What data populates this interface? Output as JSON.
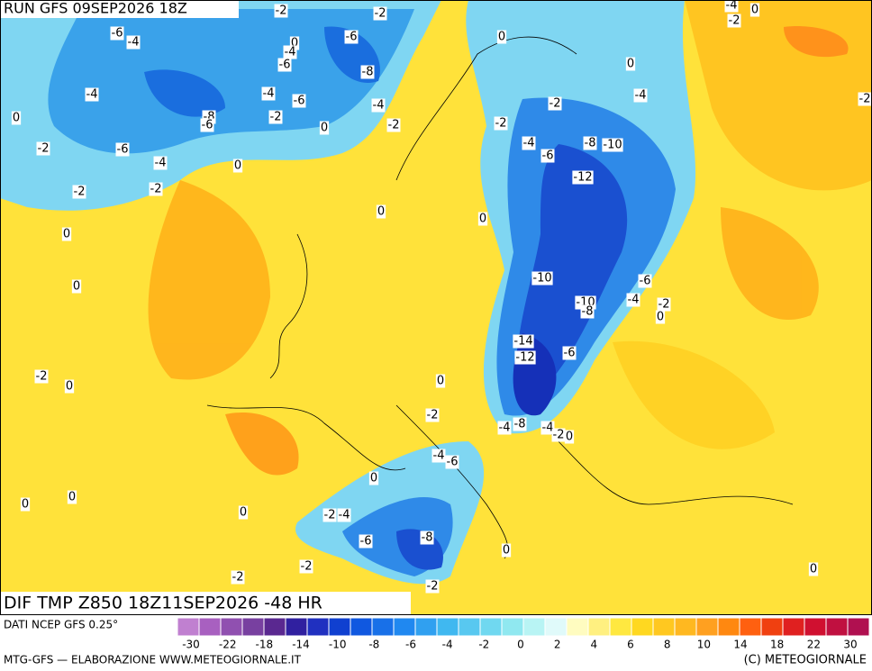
{
  "header": {
    "run": "RUN GFS 09SEP2026 18Z",
    "field": "DIF TMP Z850 18Z11SEP2026 -48 HR",
    "source": "DATI NCEP GFS 0.25°",
    "credit_left": "MTG-GFS — ELABORAZIONE WWW.METEOGIORNALE.IT",
    "credit_right": "(C) METEOGIORNALE"
  },
  "colorbar": {
    "colors": [
      "#c080d0",
      "#a860c0",
      "#9050b0",
      "#7840a0",
      "#5a2890",
      "#3020a0",
      "#2030c0",
      "#1040d0",
      "#1058e0",
      "#1870e8",
      "#2088f0",
      "#30a0f0",
      "#40b8f0",
      "#58c8f0",
      "#70d8f0",
      "#90e8f0",
      "#b8f4f4",
      "#e0fafa",
      "#fffcc0",
      "#fff080",
      "#ffe840",
      "#ffd820",
      "#ffc820",
      "#ffb820",
      "#ffa020",
      "#ff8810",
      "#ff6010",
      "#f04010",
      "#e02020",
      "#d01030",
      "#c01040",
      "#b01050"
    ],
    "labels": [
      -30,
      -22,
      -18,
      -14,
      -10,
      -8,
      -6,
      -4,
      -2,
      0,
      2,
      4,
      6,
      8,
      10,
      14,
      18,
      22,
      30
    ]
  },
  "map": {
    "contour_labels": [
      -2,
      -2,
      -6,
      -4,
      0,
      -4,
      -6,
      -6,
      -8,
      -4,
      -4,
      -6,
      -4,
      0,
      -8,
      -6,
      -2,
      -2,
      0,
      -2,
      -6,
      -4,
      0,
      -2,
      -2,
      0,
      0,
      0,
      0,
      0,
      -4,
      -2,
      -2,
      -4,
      -6,
      -8,
      -10,
      -12,
      0,
      -10,
      -6,
      -10,
      -8,
      -4,
      -2,
      0,
      -14,
      -12,
      -6,
      -2,
      0,
      0,
      -2,
      -4,
      -8,
      -4,
      -2,
      0,
      -4,
      -6,
      0,
      0,
      0,
      0,
      -2,
      -4,
      -6,
      -8,
      0,
      -2,
      -2,
      -2,
      0,
      -4,
      0,
      -2,
      -2
    ]
  }
}
